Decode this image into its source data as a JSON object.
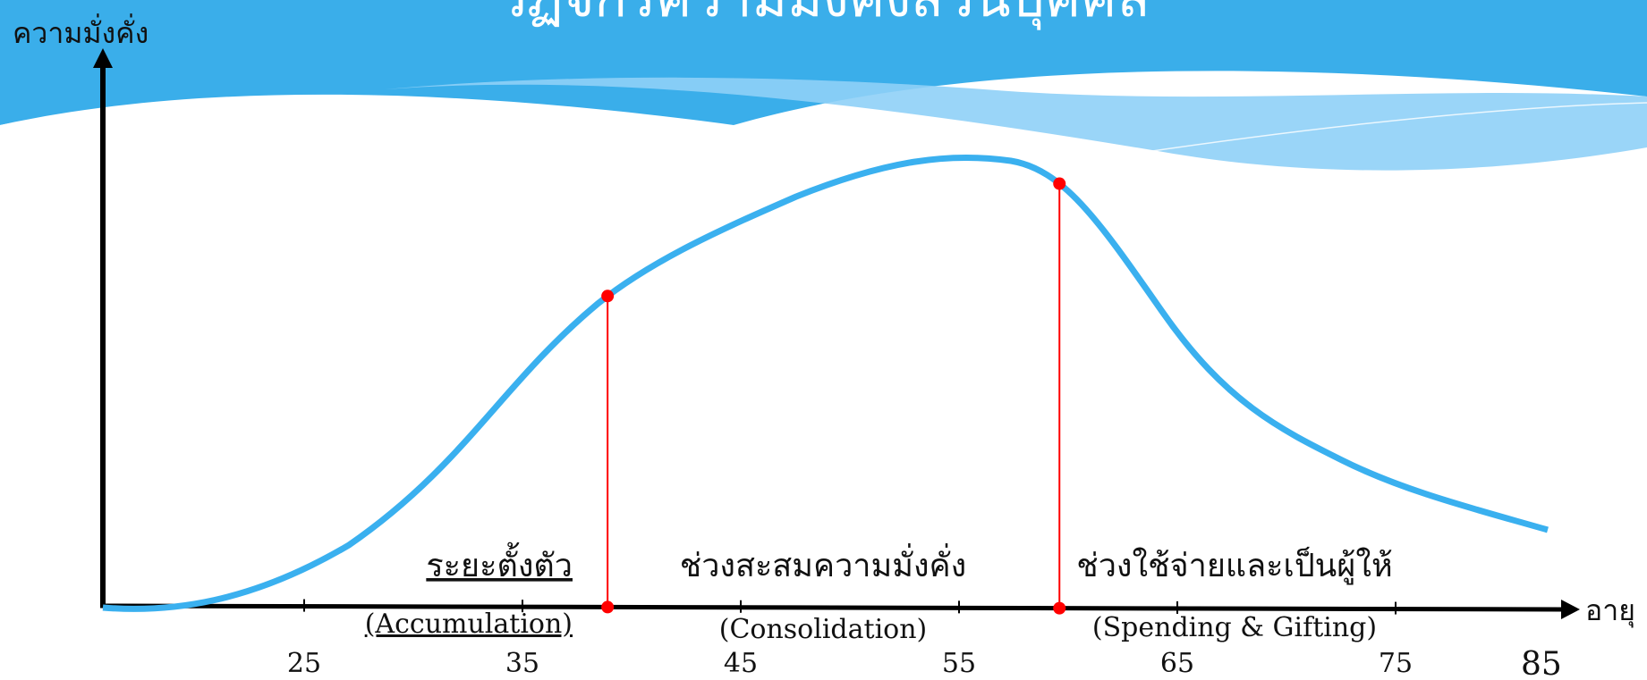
{
  "header": {
    "title": "วัฏจักรความมั่งคั่งส่วนบุคคล",
    "colors": {
      "banner": "#3aaeea",
      "banner_light": "#8fd0f7"
    }
  },
  "chart_data": {
    "type": "line",
    "ylabel": "ความมั่งคั่ง",
    "xlabel": "อายุ",
    "x_ticks": [
      "25",
      "35",
      "45",
      "55",
      "65",
      "75"
    ],
    "page_number": "85",
    "curve_color": "#3ab0ef",
    "marker_color": "#ff0000",
    "markers": [
      {
        "name": "end-accumulation",
        "age": 38.9
      },
      {
        "name": "end-consolidation",
        "age": 59.6
      }
    ],
    "phases": [
      {
        "label_th": "ระยะตั้งตัว",
        "label_en": "(Accumulation)"
      },
      {
        "label_th": "ช่วงสะสมความมั่งคั่ง",
        "label_en": "(Consolidation)"
      },
      {
        "label_th": "ช่วงใช้จ่ายและเป็นผู้ให้",
        "label_en": "(Spending & Gifting)"
      }
    ]
  }
}
